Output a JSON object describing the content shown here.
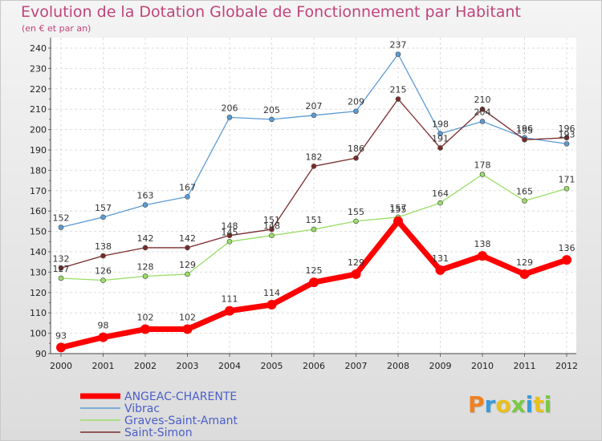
{
  "title": "Evolution de la Dotation Globale de Fonctionnement par Habitant",
  "subtitle": "(en € et par an)",
  "logo": {
    "text": "Proxiti"
  },
  "chart_data": {
    "type": "line",
    "title": "Evolution de la Dotation Globale de Fonctionnement par Habitant",
    "subtitle": "(en € et par an)",
    "xlabel": "",
    "ylabel": "",
    "x": [
      "2000",
      "2001",
      "2002",
      "2003",
      "2004",
      "2005",
      "2006",
      "2007",
      "2008",
      "2009",
      "2010",
      "2011",
      "2012"
    ],
    "yticks": [
      90,
      100,
      110,
      120,
      130,
      140,
      150,
      160,
      170,
      180,
      190,
      200,
      210,
      220,
      230,
      240
    ],
    "ylim": [
      90,
      240
    ],
    "grid": true,
    "legend_position": "bottom-left",
    "series": [
      {
        "name": "Vibrac",
        "color": "#5b9bd5",
        "values": [
          152,
          157,
          163,
          167,
          206,
          205,
          207,
          209,
          237,
          198,
          204,
          196,
          193
        ]
      },
      {
        "name": "Graves-Saint-Amant",
        "color": "#99dd66",
        "values": [
          127,
          126,
          128,
          129,
          145,
          148,
          151,
          155,
          157,
          164,
          178,
          165,
          171
        ]
      },
      {
        "name": "Saint-Simon",
        "color": "#7a2a2a",
        "values": [
          132,
          138,
          142,
          142,
          148,
          151,
          182,
          186,
          215,
          191,
          210,
          195,
          196
        ]
      },
      {
        "name": "ANGEAC-CHARENTE",
        "color": "#ff0000",
        "values": [
          93,
          98,
          102,
          102,
          111,
          114,
          125,
          129,
          155,
          131,
          138,
          129,
          136
        ]
      }
    ],
    "legend_order": [
      "ANGEAC-CHARENTE",
      "Vibrac",
      "Graves-Saint-Amant",
      "Saint-Simon"
    ]
  }
}
